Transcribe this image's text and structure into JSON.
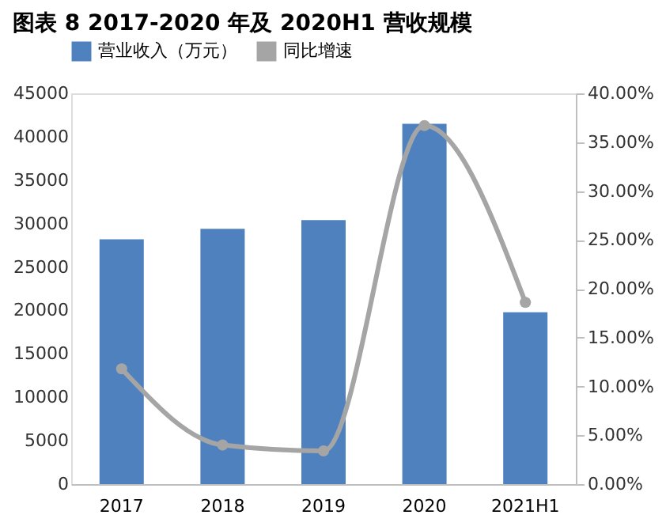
{
  "chart_data": {
    "type": "bar",
    "title": "图表 8 2017-2020 年及 2020H1 营收规模",
    "categories": [
      "2017",
      "2018",
      "2019",
      "2020",
      "2021H1"
    ],
    "series": [
      {
        "name": "营业收入（万元）",
        "color": "#4e81bd",
        "values": [
          28200,
          29400,
          30400,
          41500,
          19800
        ]
      },
      {
        "name": "同比增速",
        "type": "line",
        "axis": "y2",
        "color": "#a5a5a5",
        "marker": "circle",
        "values": [
          11.8,
          4.0,
          3.4,
          36.7,
          18.6
        ]
      }
    ],
    "ylim": [
      0,
      45000
    ],
    "yticks": [
      0,
      5000,
      10000,
      15000,
      20000,
      25000,
      30000,
      35000,
      40000,
      45000
    ],
    "y2lim": [
      0,
      40
    ],
    "y2ticks": [
      {
        "value": 0,
        "label": "0.00%"
      },
      {
        "value": 5,
        "label": "5.00%"
      },
      {
        "value": 10,
        "label": "10.00%"
      },
      {
        "value": 15,
        "label": "15.00%"
      },
      {
        "value": 20,
        "label": "20.00%"
      },
      {
        "value": 25,
        "label": "25.00%"
      },
      {
        "value": 30,
        "label": "30.00%"
      },
      {
        "value": 35,
        "label": "35.00%"
      },
      {
        "value": 40,
        "label": "40.00%"
      }
    ],
    "legend": "top",
    "grid": false
  }
}
